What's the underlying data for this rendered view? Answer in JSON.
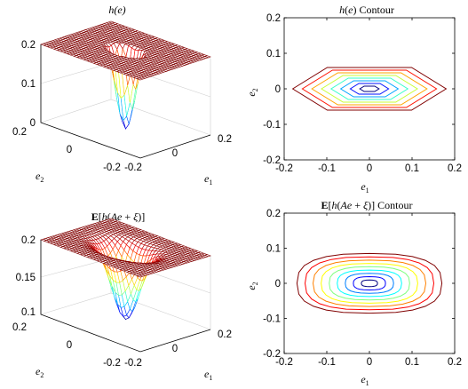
{
  "chart_data": [
    {
      "type": "surface",
      "title": "h(e)",
      "xlabel": "e1",
      "ylabel": "e2",
      "xlim": [
        -0.2,
        0.2
      ],
      "ylim": [
        -0.2,
        0.2
      ],
      "zlim": [
        0,
        0.2
      ],
      "x_ticks": [
        "-0.2",
        "0",
        "0.2"
      ],
      "y_ticks": [
        "-0.2",
        "0",
        "0.2"
      ],
      "z_ticks": [
        "0",
        "0.1",
        "0.2"
      ],
      "plateau_z": 0.2,
      "minimum_z": 0,
      "minimum_at": [
        0,
        0
      ],
      "grid": true,
      "colormap": "jet"
    },
    {
      "type": "contour",
      "title": "h(e) Contour",
      "xlabel": "e1",
      "ylabel": "e2",
      "xlim": [
        -0.2,
        0.2
      ],
      "ylim": [
        -0.2,
        0.2
      ],
      "x_ticks": [
        "-0.2",
        "-0.1",
        "0",
        "0.1",
        "0.2"
      ],
      "y_ticks": [
        "-0.2",
        "-0.1",
        "0",
        "0.1",
        "0.2"
      ],
      "center": [
        0,
        0
      ],
      "outer_extent_e1": [
        -0.18,
        0.18
      ],
      "outer_extent_e2": [
        -0.06,
        0.06
      ],
      "levels": 8,
      "colormap": "jet"
    },
    {
      "type": "surface",
      "title": "E[h(Ae + ξ)]",
      "xlabel": "e1",
      "ylabel": "e2",
      "xlim": [
        -0.2,
        0.2
      ],
      "ylim": [
        -0.2,
        0.2
      ],
      "zlim": [
        0.08,
        0.2
      ],
      "x_ticks": [
        "-0.2",
        "0",
        "0.2"
      ],
      "y_ticks": [
        "-0.2",
        "0",
        "0.2"
      ],
      "z_ticks": [
        "0.1",
        "0.15",
        "0.2"
      ],
      "plateau_z": 0.2,
      "minimum_z": 0.085,
      "minimum_at": [
        0,
        0
      ],
      "grid": true,
      "colormap": "jet"
    },
    {
      "type": "contour",
      "title": "E[h(Ae + ξ)] Contour",
      "xlabel": "e1",
      "ylabel": "e2",
      "xlim": [
        -0.2,
        0.2
      ],
      "ylim": [
        -0.2,
        0.2
      ],
      "x_ticks": [
        "-0.2",
        "-0.1",
        "0",
        "0.1",
        "0.2"
      ],
      "y_ticks": [
        "-0.2",
        "-0.1",
        "0",
        "0.1",
        "0.2"
      ],
      "center": [
        0,
        0
      ],
      "outer_extent_e1": [
        -0.17,
        0.17
      ],
      "outer_extent_e2": [
        -0.085,
        0.085
      ],
      "levels": 9,
      "colormap": "jet"
    }
  ]
}
